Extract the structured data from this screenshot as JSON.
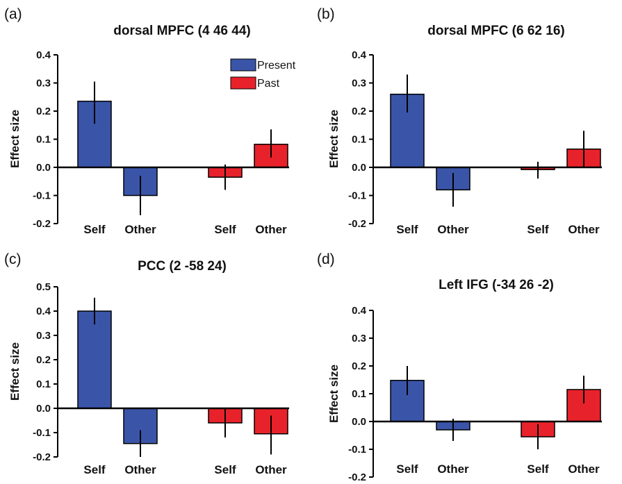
{
  "colors": {
    "Present": "#3a55a8",
    "Past": "#e8222b",
    "axis": "#000000"
  },
  "legend": [
    {
      "name": "Present",
      "color": "#3a55a8"
    },
    {
      "name": "Past",
      "color": "#e8222b"
    }
  ],
  "chart_data": [
    {
      "type": "bar",
      "panel_letter": "(a)",
      "title": "dorsal MPFC (4 46 44)",
      "ylabel": "Effect size",
      "ylim": [
        -0.2,
        0.4
      ],
      "yticks": [
        "0.4",
        "0.3",
        "0.2",
        "0.1",
        "0.0",
        "-0.1",
        "-0.2"
      ],
      "categories": [
        "Self",
        "Other",
        "Self",
        "Other"
      ],
      "bars": [
        {
          "series": "Present",
          "label": "Self",
          "value": 0.235,
          "err_low": 0.155,
          "err_high": 0.305
        },
        {
          "series": "Present",
          "label": "Other",
          "value": -0.1,
          "err_low": -0.17,
          "err_high": -0.03
        },
        {
          "series": "Past",
          "label": "Self",
          "value": -0.035,
          "err_low": -0.08,
          "err_high": 0.01
        },
        {
          "series": "Past",
          "label": "Other",
          "value": 0.082,
          "err_low": 0.035,
          "err_high": 0.135
        }
      ],
      "legend_position": "top-right"
    },
    {
      "type": "bar",
      "panel_letter": "(b)",
      "title": "dorsal MPFC (6 62 16)",
      "ylabel": "Effect size",
      "ylim": [
        -0.2,
        0.4
      ],
      "yticks": [
        "0.4",
        "0.3",
        "0.2",
        "0.1",
        "0.0",
        "-0.1",
        "-0.2"
      ],
      "categories": [
        "Self",
        "Other",
        "Self",
        "Other"
      ],
      "bars": [
        {
          "series": "Present",
          "label": "Self",
          "value": 0.26,
          "err_low": 0.195,
          "err_high": 0.33
        },
        {
          "series": "Present",
          "label": "Other",
          "value": -0.08,
          "err_low": -0.14,
          "err_high": -0.02
        },
        {
          "series": "Past",
          "label": "Self",
          "value": -0.008,
          "err_low": -0.04,
          "err_high": 0.02
        },
        {
          "series": "Past",
          "label": "Other",
          "value": 0.065,
          "err_low": 0.0,
          "err_high": 0.13
        }
      ]
    },
    {
      "type": "bar",
      "panel_letter": "(c)",
      "title": "PCC (2 -58 24)",
      "ylabel": "Effect size",
      "ylim": [
        -0.2,
        0.5
      ],
      "yticks": [
        "0.5",
        "0.4",
        "0.3",
        "0.2",
        "0.1",
        "0.0",
        "-0.1",
        "-0.2"
      ],
      "categories": [
        "Self",
        "Other",
        "Self",
        "Other"
      ],
      "bars": [
        {
          "series": "Present",
          "label": "Self",
          "value": 0.4,
          "err_low": 0.345,
          "err_high": 0.455
        },
        {
          "series": "Present",
          "label": "Other",
          "value": -0.145,
          "err_low": -0.2,
          "err_high": -0.09
        },
        {
          "series": "Past",
          "label": "Self",
          "value": -0.06,
          "err_low": -0.12,
          "err_high": 0.0
        },
        {
          "series": "Past",
          "label": "Other",
          "value": -0.105,
          "err_low": -0.19,
          "err_high": -0.03
        }
      ]
    },
    {
      "type": "bar",
      "panel_letter": "(d)",
      "title": "Left IFG (-34 26 -2)",
      "ylabel": "Effect size",
      "ylim": [
        -0.2,
        0.4
      ],
      "yticks": [
        "0.4",
        "0.3",
        "0.2",
        "0.1",
        "0.0",
        "-0.1",
        "-0.2"
      ],
      "categories": [
        "Self",
        "Other",
        "Self",
        "Other"
      ],
      "bars": [
        {
          "series": "Present",
          "label": "Self",
          "value": 0.148,
          "err_low": 0.095,
          "err_high": 0.2
        },
        {
          "series": "Present",
          "label": "Other",
          "value": -0.03,
          "err_low": -0.07,
          "err_high": 0.01
        },
        {
          "series": "Past",
          "label": "Self",
          "value": -0.055,
          "err_low": -0.1,
          "err_high": -0.01
        },
        {
          "series": "Past",
          "label": "Other",
          "value": 0.115,
          "err_low": 0.065,
          "err_high": 0.165
        }
      ]
    }
  ]
}
